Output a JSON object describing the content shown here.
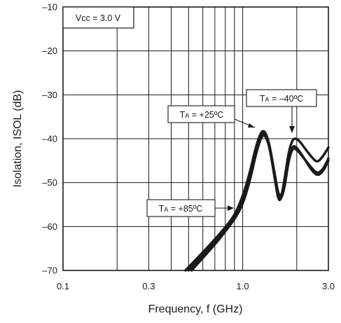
{
  "chart_data": {
    "type": "line",
    "xlabel": "Frequency, f (GHz)",
    "ylabel": "Isolation, ISOL (dB)",
    "xscale": "log",
    "xlim": [
      0.1,
      3.0
    ],
    "ylim": [
      -70,
      -10
    ],
    "x_ticks": [
      {
        "value": 0.1,
        "label": "0.1"
      },
      {
        "value": 0.3,
        "label": "0.3"
      },
      {
        "value": 1.0,
        "label": "1.0"
      },
      {
        "value": 3.0,
        "label": "3.0"
      }
    ],
    "y_ticks": [
      {
        "value": -10,
        "label": "–10"
      },
      {
        "value": -20,
        "label": "–20"
      },
      {
        "value": -30,
        "label": "–30"
      },
      {
        "value": -40,
        "label": "–40"
      },
      {
        "value": -50,
        "label": "–50"
      },
      {
        "value": -60,
        "label": "–60"
      },
      {
        "value": -70,
        "label": "–70"
      }
    ],
    "grid": true,
    "condition_label": "Vcc = 3.0 V",
    "series": [
      {
        "name": "TA = +25ºC",
        "x": [
          0.5,
          0.6,
          0.7,
          0.8,
          0.9,
          1.0,
          1.1,
          1.2,
          1.3,
          1.4,
          1.5,
          1.6,
          1.7,
          1.8,
          1.9,
          2.0,
          2.1,
          2.2,
          2.4,
          2.6,
          2.8,
          3.0
        ],
        "y": [
          -70,
          -66.5,
          -63.5,
          -60.5,
          -57.8,
          -54,
          -48.5,
          -41.5,
          -38,
          -41,
          -48,
          -54.5,
          -52,
          -45,
          -42,
          -42.5,
          -43.5,
          -44.5,
          -46.5,
          -48,
          -47,
          -44.5
        ]
      },
      {
        "name": "TA = +85ºC",
        "x": [
          0.48,
          0.58,
          0.68,
          0.8,
          0.9,
          1.0,
          1.1,
          1.2,
          1.3,
          1.4,
          1.5,
          1.6,
          1.7,
          1.8,
          1.9,
          2.0,
          2.1,
          2.2,
          2.4,
          2.6,
          2.8,
          3.0
        ],
        "y": [
          -70,
          -66.5,
          -63.5,
          -60.2,
          -57.5,
          -53.2,
          -47.5,
          -40.8,
          -37.5,
          -40.5,
          -47.5,
          -54,
          -51,
          -44.5,
          -41.5,
          -42,
          -43.2,
          -44.5,
          -47,
          -48.5,
          -47.5,
          -45
        ]
      },
      {
        "name": "TA = –40ºC",
        "x": [
          0.52,
          0.62,
          0.72,
          0.82,
          0.92,
          1.0,
          1.1,
          1.2,
          1.3,
          1.4,
          1.5,
          1.6,
          1.7,
          1.8,
          1.9,
          2.0,
          2.1,
          2.2,
          2.4,
          2.6,
          2.8,
          3.0
        ],
        "y": [
          -70,
          -66.5,
          -63.5,
          -60.6,
          -57.8,
          -55,
          -49.5,
          -42.5,
          -38.5,
          -41,
          -48.5,
          -55.5,
          -50,
          -43,
          -40,
          -40,
          -40.8,
          -42,
          -44,
          -45.5,
          -44,
          -42
        ]
      }
    ],
    "annotations": [
      {
        "text_prefix": "T",
        "sub": "A",
        "text_suffix": " = +25ºC",
        "series": "TA = +25ºC"
      },
      {
        "text_prefix": "T",
        "sub": "A",
        "text_suffix": " = –40ºC",
        "series": "TA = –40ºC"
      },
      {
        "text_prefix": "T",
        "sub": "A",
        "text_suffix": " = +85ºC",
        "series": "TA = +85ºC"
      }
    ]
  }
}
